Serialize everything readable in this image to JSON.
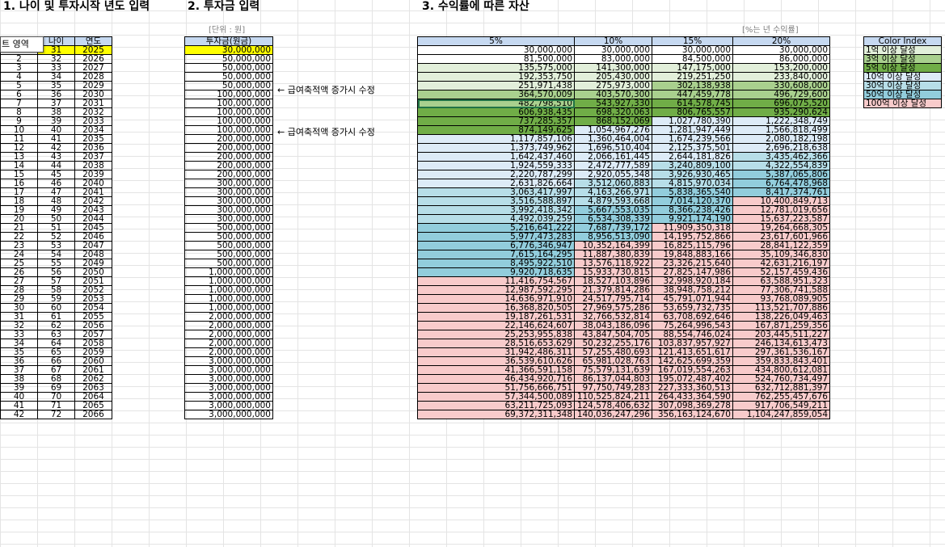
{
  "headings": {
    "section1": "1. 나이 및 투자시작 년도 입력",
    "section2": "2. 투자금 입력",
    "section3": "3. 수익률에 따른 자산"
  },
  "units": {
    "investment": "[단위 : 원]",
    "rate": "[%는 년 수익률]"
  },
  "cell_tip": "트 영역",
  "table1": {
    "headers": [
      "",
      "나이",
      "연도"
    ],
    "rows": [
      [
        "1",
        "31",
        "2025"
      ],
      [
        "2",
        "32",
        "2026"
      ],
      [
        "3",
        "33",
        "2027"
      ],
      [
        "4",
        "34",
        "2028"
      ],
      [
        "5",
        "35",
        "2029"
      ],
      [
        "6",
        "36",
        "2030"
      ],
      [
        "7",
        "37",
        "2031"
      ],
      [
        "8",
        "38",
        "2032"
      ],
      [
        "9",
        "39",
        "2033"
      ],
      [
        "10",
        "40",
        "2034"
      ],
      [
        "11",
        "41",
        "2035"
      ],
      [
        "12",
        "42",
        "2036"
      ],
      [
        "13",
        "43",
        "2037"
      ],
      [
        "14",
        "44",
        "2038"
      ],
      [
        "15",
        "45",
        "2039"
      ],
      [
        "16",
        "46",
        "2040"
      ],
      [
        "17",
        "47",
        "2041"
      ],
      [
        "18",
        "48",
        "2042"
      ],
      [
        "19",
        "49",
        "2043"
      ],
      [
        "20",
        "50",
        "2044"
      ],
      [
        "21",
        "51",
        "2045"
      ],
      [
        "22",
        "52",
        "2046"
      ],
      [
        "23",
        "53",
        "2047"
      ],
      [
        "24",
        "54",
        "2048"
      ],
      [
        "25",
        "55",
        "2049"
      ],
      [
        "26",
        "56",
        "2050"
      ],
      [
        "27",
        "57",
        "2051"
      ],
      [
        "28",
        "58",
        "2052"
      ],
      [
        "29",
        "59",
        "2053"
      ],
      [
        "30",
        "60",
        "2054"
      ],
      [
        "31",
        "61",
        "2055"
      ],
      [
        "32",
        "62",
        "2056"
      ],
      [
        "33",
        "63",
        "2057"
      ],
      [
        "34",
        "64",
        "2058"
      ],
      [
        "35",
        "65",
        "2059"
      ],
      [
        "36",
        "66",
        "2060"
      ],
      [
        "37",
        "67",
        "2061"
      ],
      [
        "38",
        "68",
        "2062"
      ],
      [
        "39",
        "69",
        "2063"
      ],
      [
        "40",
        "70",
        "2064"
      ],
      [
        "41",
        "71",
        "2065"
      ],
      [
        "42",
        "72",
        "2066"
      ]
    ]
  },
  "table2": {
    "header": "투자금(원금)",
    "values": [
      "30,000,000",
      "50,000,000",
      "50,000,000",
      "50,000,000",
      "50,000,000",
      "100,000,000",
      "100,000,000",
      "100,000,000",
      "100,000,000",
      "100,000,000",
      "200,000,000",
      "200,000,000",
      "200,000,000",
      "200,000,000",
      "200,000,000",
      "300,000,000",
      "300,000,000",
      "300,000,000",
      "300,000,000",
      "300,000,000",
      "500,000,000",
      "500,000,000",
      "500,000,000",
      "500,000,000",
      "500,000,000",
      "1,000,000,000",
      "1,000,000,000",
      "1,000,000,000",
      "1,000,000,000",
      "1,000,000,000",
      "2,000,000,000",
      "2,000,000,000",
      "2,000,000,000",
      "2,000,000,000",
      "2,000,000,000",
      "3,000,000,000",
      "3,000,000,000",
      "3,000,000,000",
      "3,000,000,000",
      "3,000,000,000",
      "3,000,000,000",
      "3,000,000,000"
    ]
  },
  "notes": [
    {
      "row": 6,
      "text": "← 급여축적액 증가시 수정"
    },
    {
      "row": 11,
      "text": "← 급여축적액 증가시 수정"
    }
  ],
  "table3": {
    "headers": [
      "5%",
      "10%",
      "15%",
      "20%"
    ],
    "rows": [
      [
        "30,000,000",
        "30,000,000",
        "30,000,000",
        "30,000,000"
      ],
      [
        "81,500,000",
        "83,000,000",
        "84,500,000",
        "86,000,000"
      ],
      [
        "135,575,000",
        "141,300,000",
        "147,175,000",
        "153,200,000"
      ],
      [
        "192,353,750",
        "205,430,000",
        "219,251,250",
        "233,840,000"
      ],
      [
        "251,971,438",
        "275,973,000",
        "302,138,938",
        "330,608,000"
      ],
      [
        "364,570,009",
        "403,570,300",
        "447,459,778",
        "496,729,600"
      ],
      [
        "482,798,510",
        "543,927,330",
        "614,578,745",
        "696,075,520"
      ],
      [
        "606,938,435",
        "698,320,063",
        "806,765,557",
        "935,290,624"
      ],
      [
        "737,285,357",
        "868,152,069",
        "1,027,780,390",
        "1,222,348,749"
      ],
      [
        "874,149,625",
        "1,054,967,276",
        "1,281,947,449",
        "1,566,818,499"
      ],
      [
        "1,117,857,106",
        "1,360,464,004",
        "1,674,239,566",
        "2,080,182,198"
      ],
      [
        "1,373,749,962",
        "1,696,510,404",
        "2,125,375,501",
        "2,696,218,638"
      ],
      [
        "1,642,437,460",
        "2,066,161,445",
        "2,644,181,826",
        "3,435,462,366"
      ],
      [
        "1,924,559,333",
        "2,472,777,589",
        "3,240,809,100",
        "4,322,554,839"
      ],
      [
        "2,220,787,299",
        "2,920,055,348",
        "3,926,930,465",
        "5,387,065,806"
      ],
      [
        "2,631,826,664",
        "3,512,060,883",
        "4,815,970,034",
        "6,764,478,968"
      ],
      [
        "3,063,417,997",
        "4,163,266,971",
        "5,838,365,540",
        "8,417,374,761"
      ],
      [
        "3,516,588,897",
        "4,879,593,668",
        "7,014,120,370",
        "10,400,849,713"
      ],
      [
        "3,992,418,342",
        "5,667,553,035",
        "8,366,238,426",
        "12,781,019,656"
      ],
      [
        "4,492,039,259",
        "6,534,308,339",
        "9,921,174,190",
        "15,637,223,587"
      ],
      [
        "5,216,641,222",
        "7,687,739,172",
        "11,909,350,318",
        "19,264,668,305"
      ],
      [
        "5,977,473,283",
        "8,956,513,090",
        "14,195,752,866",
        "23,617,601,966"
      ],
      [
        "6,776,346,947",
        "10,352,164,399",
        "16,825,115,796",
        "28,841,122,359"
      ],
      [
        "7,615,164,295",
        "11,887,380,839",
        "19,848,883,166",
        "35,109,346,830"
      ],
      [
        "8,495,922,510",
        "13,576,118,922",
        "23,326,215,640",
        "42,631,216,197"
      ],
      [
        "9,920,718,635",
        "15,933,730,815",
        "27,825,147,986",
        "52,157,459,436"
      ],
      [
        "11,416,754,567",
        "18,527,103,896",
        "32,998,920,184",
        "63,588,951,323"
      ],
      [
        "12,987,592,295",
        "21,379,814,286",
        "38,948,758,212",
        "77,306,741,588"
      ],
      [
        "14,636,971,910",
        "24,517,795,714",
        "45,791,071,944",
        "93,768,089,905"
      ],
      [
        "16,368,820,505",
        "27,969,575,286",
        "53,659,732,735",
        "113,521,707,886"
      ],
      [
        "19,187,261,531",
        "32,766,532,814",
        "63,708,692,646",
        "138,226,049,463"
      ],
      [
        "22,146,624,607",
        "38,043,186,096",
        "75,264,996,543",
        "167,871,259,356"
      ],
      [
        "25,253,955,838",
        "43,847,504,705",
        "88,554,746,024",
        "203,445,511,227"
      ],
      [
        "28,516,653,629",
        "50,232,255,176",
        "103,837,957,927",
        "246,134,613,473"
      ],
      [
        "31,942,486,311",
        "57,255,480,693",
        "121,413,651,617",
        "297,361,536,167"
      ],
      [
        "36,539,610,626",
        "65,981,028,763",
        "142,625,699,359",
        "359,833,843,401"
      ],
      [
        "41,366,591,158",
        "75,579,131,639",
        "167,019,554,263",
        "434,800,612,081"
      ],
      [
        "46,434,920,716",
        "86,137,044,803",
        "195,072,487,402",
        "524,760,734,497"
      ],
      [
        "51,756,666,751",
        "97,750,749,283",
        "227,333,360,513",
        "632,712,881,397"
      ],
      [
        "57,344,500,089",
        "110,525,824,211",
        "264,433,364,590",
        "762,255,457,676"
      ],
      [
        "63,211,725,093",
        "124,578,406,632",
        "307,098,369,278",
        "917,706,549,211"
      ],
      [
        "69,372,311,348",
        "140,036,247,296",
        "356,163,124,670",
        "1,104,247,859,054"
      ]
    ]
  },
  "color_index": {
    "header": "Color Index",
    "items": [
      {
        "label": "1억 이상 달성",
        "color": "#e2efda",
        "threshold": 100000000
      },
      {
        "label": "3억 이상 달성",
        "color": "#a9d08e",
        "threshold": 300000000
      },
      {
        "label": "5억 이상 달성",
        "color": "#70ad47",
        "threshold": 500000000
      },
      {
        "label": "10억 이상 달성",
        "color": "#ddebf7",
        "threshold": 1000000000
      },
      {
        "label": "30억 이상 달성",
        "color": "#b7dee8",
        "threshold": 3000000000
      },
      {
        "label": "50억 이상 달성",
        "color": "#92cddc",
        "threshold": 5000000000
      },
      {
        "label": "100억 이상 달성",
        "color": "#f8cbcb",
        "threshold": 10000000000
      }
    ],
    "base_color": "#ffffff"
  },
  "colors": {
    "header_fill": "#c6d9f1",
    "highlight": "#ffff00",
    "grid": "#e4e4e4"
  }
}
